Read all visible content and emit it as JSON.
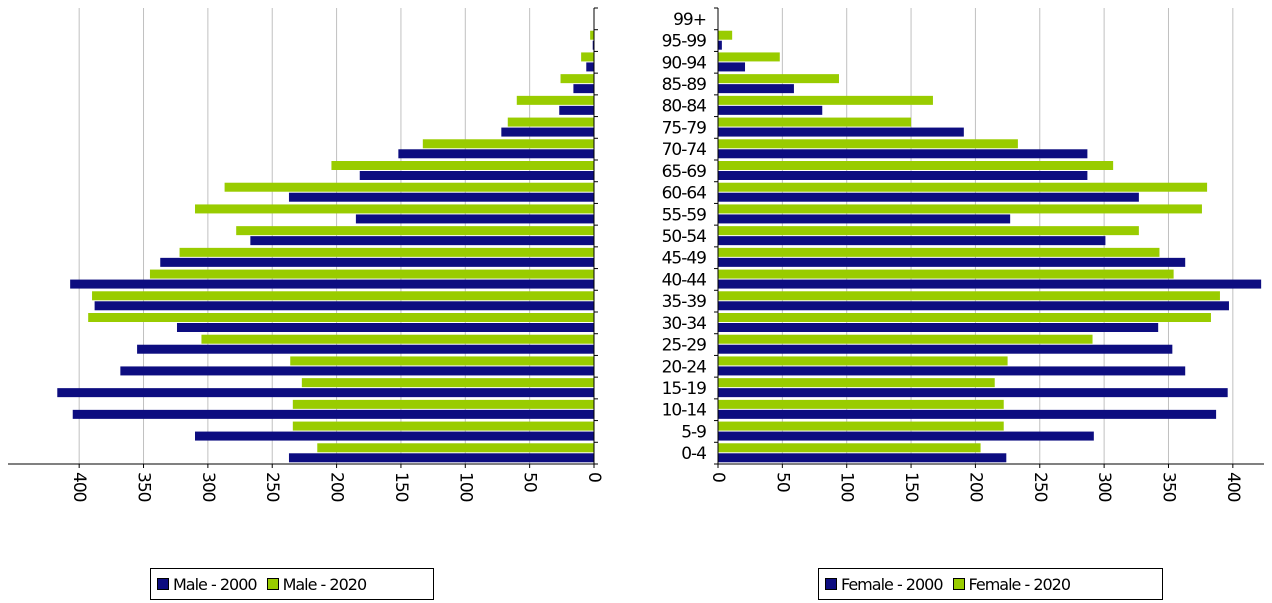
{
  "colors": {
    "series_2000": "#0d0d80",
    "series_2020": "#99cc00",
    "grid": "#c0c0c0",
    "axis": "#000000"
  },
  "chart_data": [
    {
      "type": "bar",
      "orientation": "horizontal",
      "direction": "leftward",
      "categories": [
        "0-4",
        "5-9",
        "10-14",
        "15-19",
        "20-24",
        "25-29",
        "30-34",
        "35-39",
        "40-44",
        "45-49",
        "50-54",
        "55-59",
        "60-64",
        "65-69",
        "70-74",
        "75-79",
        "80-84",
        "85-89",
        "90-94",
        "95-99",
        "99+"
      ],
      "series": [
        {
          "name": "Male - 2000",
          "values": [
            237,
            310,
            405,
            417,
            368,
            355,
            324,
            388,
            407,
            337,
            267,
            185,
            237,
            182,
            152,
            72,
            27,
            16,
            6,
            1,
            0
          ]
        },
        {
          "name": "Male - 2020",
          "values": [
            215,
            234,
            234,
            227,
            236,
            305,
            393,
            390,
            345,
            322,
            278,
            310,
            287,
            204,
            133,
            67,
            60,
            26,
            10,
            3,
            0
          ]
        }
      ],
      "xticks": [
        "400",
        "350",
        "300",
        "250",
        "200",
        "150",
        "100",
        "50",
        "0"
      ],
      "xlim": [
        0,
        430
      ],
      "grid": true,
      "legend": "bottom"
    },
    {
      "type": "bar",
      "orientation": "horizontal",
      "direction": "rightward",
      "categories": [
        "0-4",
        "5-9",
        "10-14",
        "15-19",
        "20-24",
        "25-29",
        "30-34",
        "35-39",
        "40-44",
        "45-49",
        "50-54",
        "55-59",
        "60-64",
        "65-69",
        "70-74",
        "75-79",
        "80-84",
        "85-89",
        "90-94",
        "95-99",
        "99+"
      ],
      "series": [
        {
          "name": "Female - 2000",
          "values": [
            224,
            292,
            387,
            396,
            363,
            353,
            342,
            397,
            422,
            363,
            301,
            227,
            327,
            287,
            287,
            191,
            81,
            59,
            21,
            3,
            0
          ]
        },
        {
          "name": "Female - 2020",
          "values": [
            204,
            222,
            222,
            215,
            225,
            291,
            383,
            390,
            354,
            343,
            327,
            376,
            380,
            307,
            233,
            150,
            167,
            94,
            48,
            11,
            0
          ]
        }
      ],
      "xticks": [
        "0",
        "50",
        "100",
        "150",
        "200",
        "250",
        "300",
        "350",
        "400"
      ],
      "xlim": [
        0,
        430
      ],
      "grid": true,
      "legend": "bottom"
    }
  ],
  "age_labels": [
    "0-4",
    "5-9",
    "10-14",
    "15-19",
    "20-24",
    "25-29",
    "30-34",
    "35-39",
    "40-44",
    "45-49",
    "50-54",
    "55-59",
    "60-64",
    "65-69",
    "70-74",
    "75-79",
    "80-84",
    "85-89",
    "90-94",
    "95-99",
    "99+"
  ],
  "legend_male": {
    "entry_2000": "Male - 2000",
    "entry_2020": "Male - 2020"
  },
  "legend_female": {
    "entry_2000": "Female - 2000",
    "entry_2020": "Female - 2020"
  }
}
